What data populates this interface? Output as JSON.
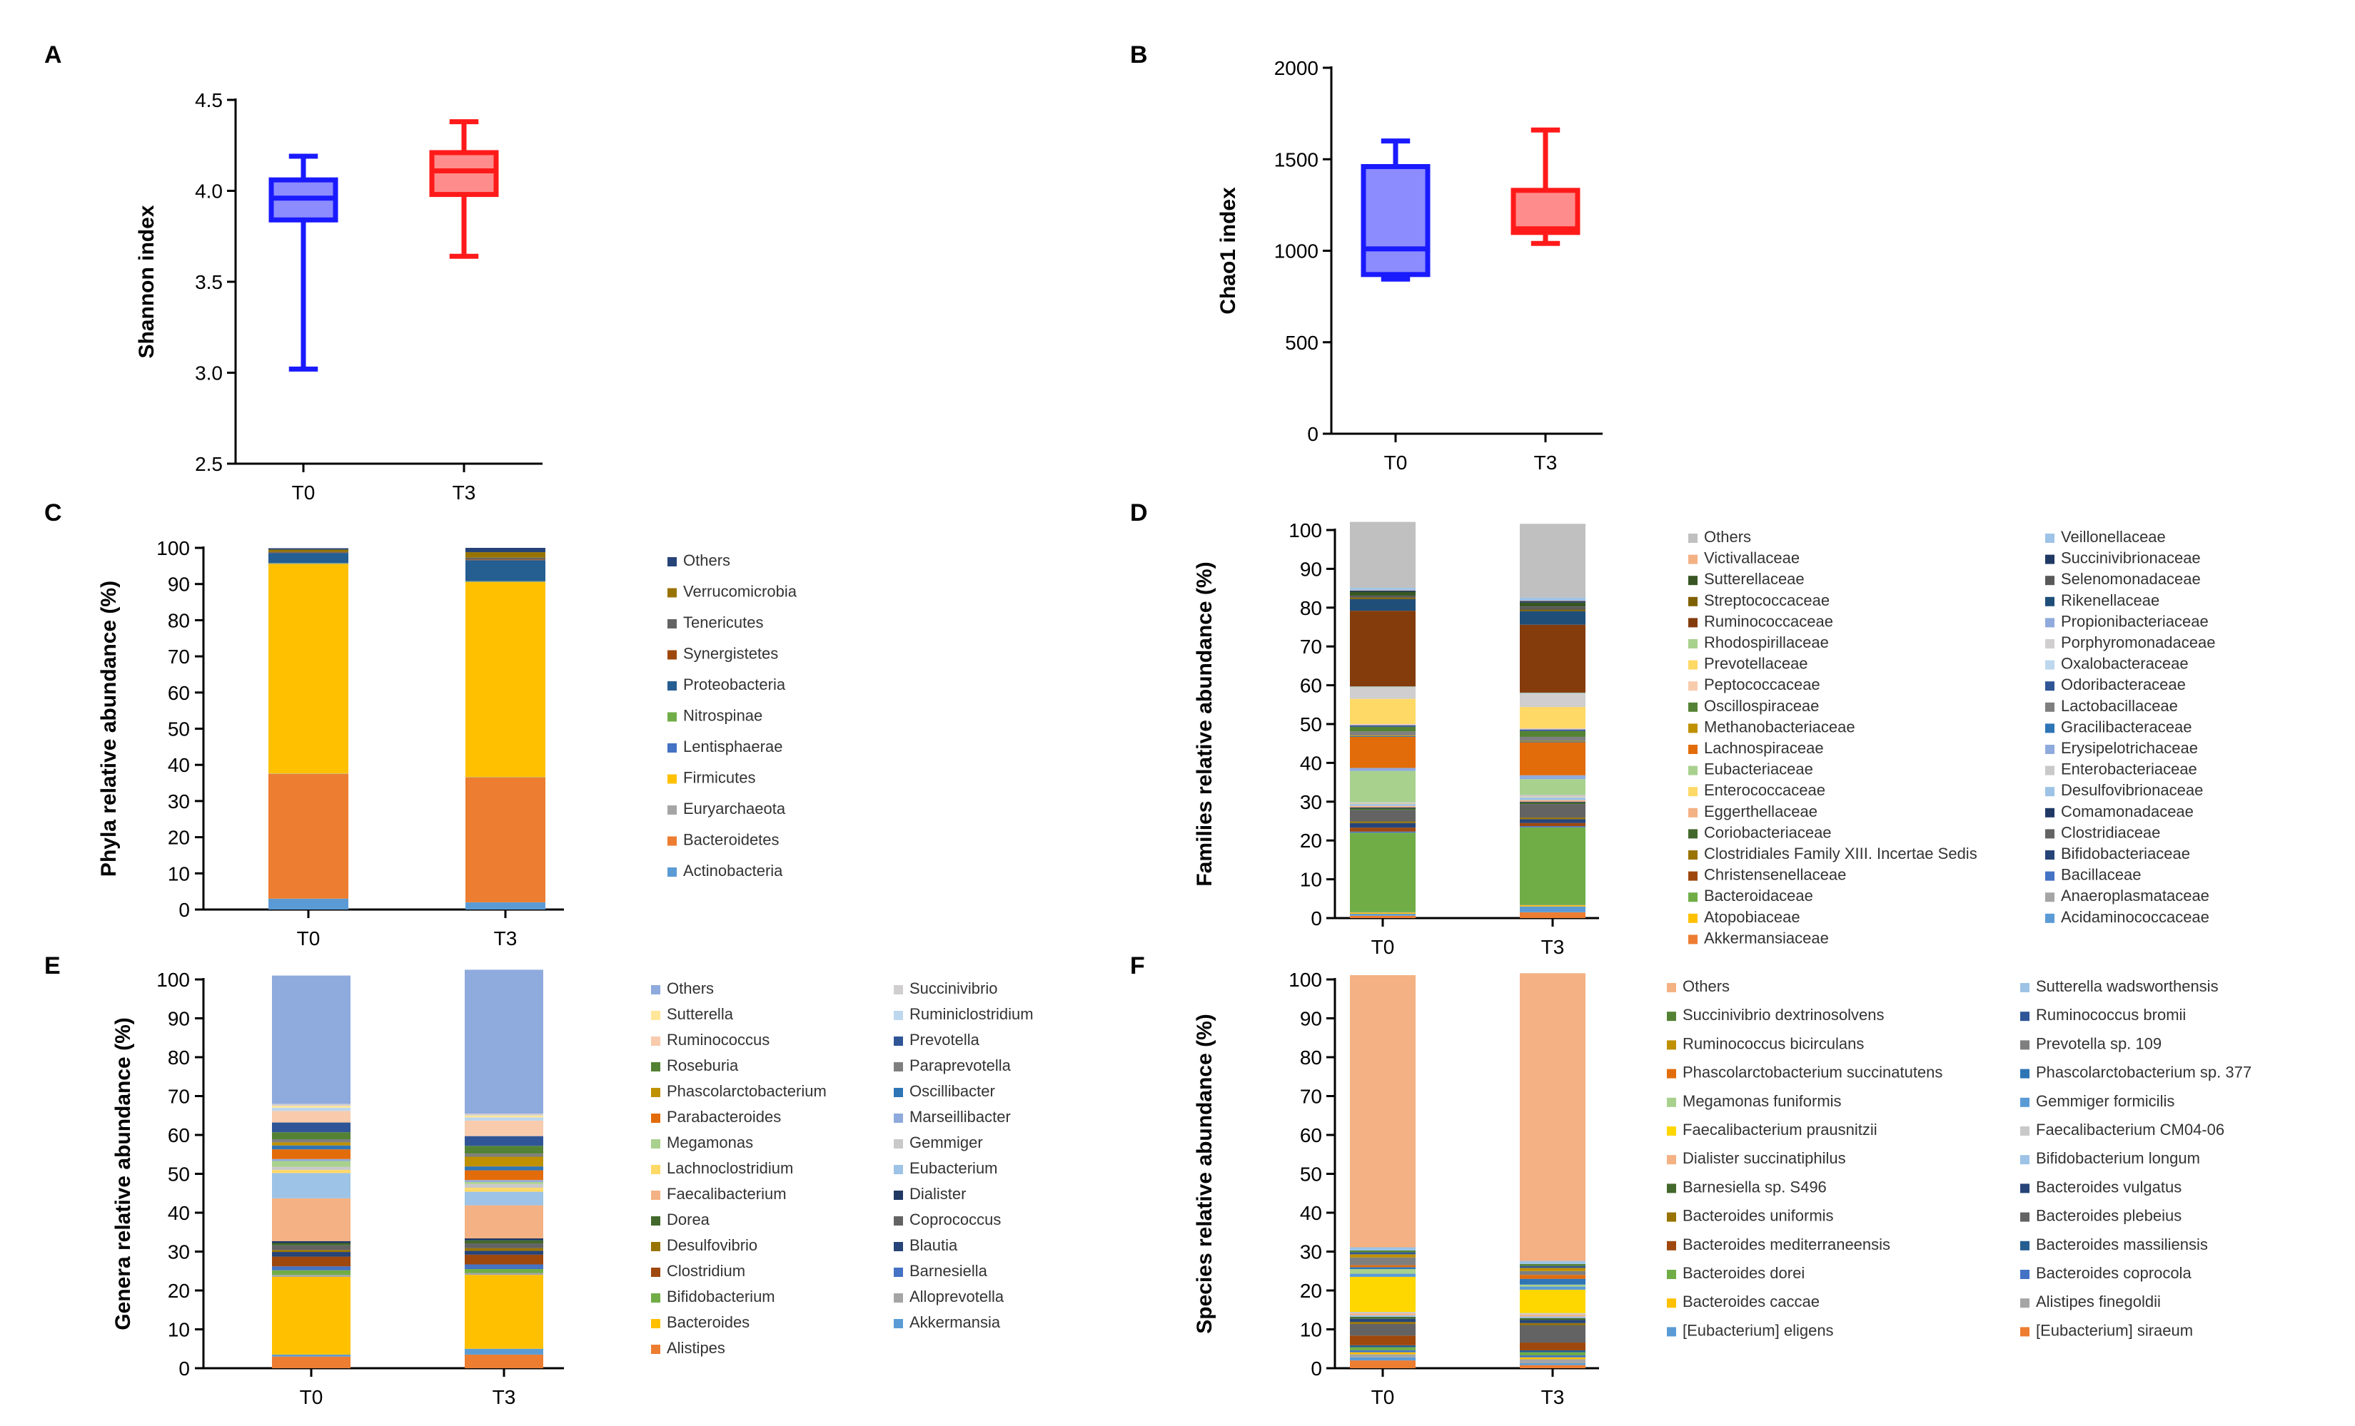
{
  "chart_data": [
    {
      "panel": "A",
      "type": "box",
      "ylabel": "Shannon index",
      "ylim": [
        2.5,
        4.5
      ],
      "yticks": [
        "2.5",
        "3.0",
        "3.5",
        "4.0",
        "4.5"
      ],
      "categories": [
        "T0",
        "T3"
      ],
      "boxes": [
        {
          "name": "T0",
          "min": 3.02,
          "q1": 3.84,
          "median": 3.96,
          "q3": 4.06,
          "max": 4.19,
          "color": "#1a1aff",
          "fill": "#8c8cff"
        },
        {
          "name": "T3",
          "min": 3.64,
          "q1": 3.98,
          "median": 4.11,
          "q3": 4.21,
          "max": 4.38,
          "color": "#ff1a1a",
          "fill": "#ff8c8c"
        }
      ]
    },
    {
      "panel": "B",
      "type": "box",
      "ylabel": "Chao1 index",
      "ylim": [
        0,
        2000
      ],
      "yticks": [
        "0",
        "500",
        "1000",
        "1500",
        "2000"
      ],
      "categories": [
        "T0",
        "T3"
      ],
      "boxes": [
        {
          "name": "T0",
          "min": 845,
          "q1": 870,
          "median": 1010,
          "q3": 1460,
          "max": 1600,
          "color": "#1a1aff",
          "fill": "#8c8cff"
        },
        {
          "name": "T3",
          "min": 1040,
          "q1": 1100,
          "median": 1120,
          "q3": 1330,
          "max": 1660,
          "color": "#ff1a1a",
          "fill": "#ff8c8c"
        }
      ]
    },
    {
      "panel": "C",
      "type": "bar",
      "stacked": true,
      "ylabel": "Phyla relative abundance (%)",
      "ylim": [
        0,
        100
      ],
      "yticks": [
        "0",
        "10",
        "20",
        "30",
        "40",
        "50",
        "60",
        "70",
        "80",
        "90",
        "100"
      ],
      "categories": [
        "T0",
        "T3"
      ],
      "legend_columns": 1,
      "series": [
        {
          "name": "Actinobacteria",
          "color": "#5b9bd5",
          "values": [
            3.0,
            2.0
          ]
        },
        {
          "name": "Bacteroidetes",
          "color": "#ed7d31",
          "values": [
            34.5,
            34.5
          ]
        },
        {
          "name": "Euryarchaeota",
          "color": "#a5a5a5",
          "values": [
            0.1,
            0.1
          ]
        },
        {
          "name": "Firmicutes",
          "color": "#ffc000",
          "values": [
            58.0,
            54.0
          ]
        },
        {
          "name": "Lentisphaerae",
          "color": "#4472c4",
          "values": [
            0.1,
            0.1
          ]
        },
        {
          "name": "Nitrospinae",
          "color": "#70ad47",
          "values": [
            0.1,
            0.1
          ]
        },
        {
          "name": "Proteobacteria",
          "color": "#255e91",
          "values": [
            2.8,
            5.8
          ]
        },
        {
          "name": "Synergistetes",
          "color": "#9e480e",
          "values": [
            0.1,
            0.2
          ]
        },
        {
          "name": "Tenericutes",
          "color": "#636363",
          "values": [
            0.2,
            0.5
          ]
        },
        {
          "name": "Verrucomicrobia",
          "color": "#997300",
          "values": [
            0.6,
            1.5
          ]
        },
        {
          "name": "Others",
          "color": "#264478",
          "values": [
            0.4,
            1.2
          ]
        }
      ]
    },
    {
      "panel": "D",
      "type": "bar",
      "stacked": true,
      "ylabel": "Families relative abundance (%)",
      "ylim": [
        0,
        100
      ],
      "yticks": [
        "0",
        "10",
        "20",
        "30",
        "40",
        "50",
        "60",
        "70",
        "80",
        "90",
        "100"
      ],
      "categories": [
        "T0",
        "T3"
      ],
      "legend_columns": 2,
      "series": [
        {
          "name": "Akkermansiaceae",
          "color": "#ed7d31",
          "values": [
            0.6,
            1.5
          ]
        },
        {
          "name": "Acidaminococcaceae",
          "color": "#5b9bd5",
          "values": [
            0.5,
            1.5
          ]
        },
        {
          "name": "Atopobiaceae",
          "color": "#ffc000",
          "values": [
            0.3,
            0.3
          ]
        },
        {
          "name": "Anaeroplasmataceae",
          "color": "#a5a5a5",
          "values": [
            0.1,
            0.1
          ]
        },
        {
          "name": "Bacteroidaceae",
          "color": "#70ad47",
          "values": [
            20.5,
            20.0
          ]
        },
        {
          "name": "Bacillaceae",
          "color": "#4472c4",
          "values": [
            0.3,
            0.3
          ]
        },
        {
          "name": "Christensenellaceae",
          "color": "#9e480e",
          "values": [
            1.0,
            0.8
          ]
        },
        {
          "name": "Bifidobacteriaceae",
          "color": "#264478",
          "values": [
            1.2,
            1.0
          ]
        },
        {
          "name": "Clostridiales Family XIII. Incertae Sedis",
          "color": "#997300",
          "values": [
            0.4,
            0.4
          ]
        },
        {
          "name": "Clostridiaceae",
          "color": "#636363",
          "values": [
            3.0,
            3.5
          ]
        },
        {
          "name": "Coriobacteriaceae",
          "color": "#43682b",
          "values": [
            0.4,
            0.4
          ]
        },
        {
          "name": "Comamonadaceae",
          "color": "#1f3864",
          "values": [
            0.2,
            0.2
          ]
        },
        {
          "name": "Eggerthellaceae",
          "color": "#f4b183",
          "values": [
            0.4,
            0.4
          ]
        },
        {
          "name": "Desulfovibrionaceae",
          "color": "#9dc3e6",
          "values": [
            0.5,
            0.7
          ]
        },
        {
          "name": "Enterococcaceae",
          "color": "#ffd966",
          "values": [
            0.1,
            0.1
          ]
        },
        {
          "name": "Enterobacteriaceae",
          "color": "#c9c9c9",
          "values": [
            0.4,
            0.6
          ]
        },
        {
          "name": "Eubacteriaceae",
          "color": "#a9d18e",
          "values": [
            8.0,
            4.0
          ]
        },
        {
          "name": "Erysipelotrichaceae",
          "color": "#8faadc",
          "values": [
            0.8,
            1.0
          ]
        },
        {
          "name": "Lachnospiraceae",
          "color": "#e36c0a",
          "values": [
            8.0,
            8.5
          ]
        },
        {
          "name": "Gracilibacteraceae",
          "color": "#2e75b6",
          "values": [
            0.2,
            0.2
          ]
        },
        {
          "name": "Methanobacteriaceae",
          "color": "#bf9000",
          "values": [
            0.2,
            0.2
          ]
        },
        {
          "name": "Lactobacillaceae",
          "color": "#7f7f7f",
          "values": [
            1.0,
            1.0
          ]
        },
        {
          "name": "Oscillospiraceae",
          "color": "#548235",
          "values": [
            1.2,
            1.5
          ]
        },
        {
          "name": "Odoribacteraceae",
          "color": "#2f5597",
          "values": [
            0.4,
            0.4
          ]
        },
        {
          "name": "Peptococcaceae",
          "color": "#f8cbad",
          "values": [
            0.2,
            0.2
          ]
        },
        {
          "name": "Oxalobacteraceae",
          "color": "#bdd7ee",
          "values": [
            0.1,
            0.1
          ]
        },
        {
          "name": "Prevotellaceae",
          "color": "#ffd966",
          "values": [
            6.5,
            5.5
          ]
        },
        {
          "name": "Porphyromonadaceae",
          "color": "#d0cece",
          "values": [
            3.0,
            3.5
          ]
        },
        {
          "name": "Rhodospirillaceae",
          "color": "#a9d18e",
          "values": [
            0.1,
            0.1
          ]
        },
        {
          "name": "Propionibacteriaceae",
          "color": "#8faadc",
          "values": [
            0.1,
            0.1
          ]
        },
        {
          "name": "Ruminococcaceae",
          "color": "#843c0c",
          "values": [
            19.5,
            17.5
          ]
        },
        {
          "name": "Rikenellaceae",
          "color": "#1f4e79",
          "values": [
            3.0,
            3.5
          ]
        },
        {
          "name": "Streptococcaceae",
          "color": "#7f6000",
          "values": [
            0.4,
            0.4
          ]
        },
        {
          "name": "Selenomonadaceae",
          "color": "#595959",
          "values": [
            0.5,
            0.8
          ]
        },
        {
          "name": "Sutterellaceae",
          "color": "#375623",
          "values": [
            1.0,
            1.0
          ]
        },
        {
          "name": "Succinivibrionaceae",
          "color": "#203864",
          "values": [
            0.3,
            0.4
          ]
        },
        {
          "name": "Victivallaceae",
          "color": "#f4b183",
          "values": [
            0.1,
            0.1
          ]
        },
        {
          "name": "Veillonellaceae",
          "color": "#9dc3e6",
          "values": [
            0.6,
            0.8
          ]
        },
        {
          "name": "Others",
          "color": "#c0c0c0",
          "values": [
            17.0,
            19.0
          ]
        }
      ]
    },
    {
      "panel": "E",
      "type": "bar",
      "stacked": true,
      "ylabel": "Genera relative abundance (%)",
      "ylim": [
        0,
        100
      ],
      "yticks": [
        "0",
        "10",
        "20",
        "30",
        "40",
        "50",
        "60",
        "70",
        "80",
        "90",
        "100"
      ],
      "categories": [
        "T0",
        "T3"
      ],
      "legend_columns": 2,
      "series": [
        {
          "name": "Alistipes",
          "color": "#ed7d31",
          "values": [
            3.0,
            3.5
          ]
        },
        {
          "name": "Akkermansia",
          "color": "#5b9bd5",
          "values": [
            0.5,
            1.5
          ]
        },
        {
          "name": "Bacteroides",
          "color": "#ffc000",
          "values": [
            20.0,
            19.0
          ]
        },
        {
          "name": "Alloprevotella",
          "color": "#a5a5a5",
          "values": [
            0.5,
            0.5
          ]
        },
        {
          "name": "Bifidobacterium",
          "color": "#70ad47",
          "values": [
            1.2,
            1.0
          ]
        },
        {
          "name": "Barnesiella",
          "color": "#4472c4",
          "values": [
            1.0,
            1.2
          ]
        },
        {
          "name": "Clostridium",
          "color": "#9e480e",
          "values": [
            2.5,
            2.5
          ]
        },
        {
          "name": "Blautia",
          "color": "#264478",
          "values": [
            1.2,
            1.0
          ]
        },
        {
          "name": "Desulfovibrio",
          "color": "#997300",
          "values": [
            0.5,
            0.7
          ]
        },
        {
          "name": "Coprococcus",
          "color": "#636363",
          "values": [
            1.2,
            1.2
          ]
        },
        {
          "name": "Dorea",
          "color": "#43682b",
          "values": [
            0.6,
            0.8
          ]
        },
        {
          "name": "Dialister",
          "color": "#1f3864",
          "values": [
            0.5,
            0.5
          ]
        },
        {
          "name": "Faecalibacterium",
          "color": "#f4b183",
          "values": [
            11.0,
            8.5
          ]
        },
        {
          "name": "Eubacterium",
          "color": "#9dc3e6",
          "values": [
            6.5,
            3.5
          ]
        },
        {
          "name": "Lachnoclostridium",
          "color": "#ffd966",
          "values": [
            0.8,
            1.0
          ]
        },
        {
          "name": "Gemmiger",
          "color": "#c9c9c9",
          "values": [
            0.8,
            1.0
          ]
        },
        {
          "name": "Megamonas",
          "color": "#a9d18e",
          "values": [
            1.5,
            0.5
          ]
        },
        {
          "name": "Marseillibacter",
          "color": "#8faadc",
          "values": [
            0.5,
            0.5
          ]
        },
        {
          "name": "Parabacteroides",
          "color": "#e36c0a",
          "values": [
            2.5,
            2.5
          ]
        },
        {
          "name": "Oscillibacter",
          "color": "#2e75b6",
          "values": [
            1.0,
            1.0
          ]
        },
        {
          "name": "Phascolarctobacterium",
          "color": "#bf9000",
          "values": [
            0.8,
            2.5
          ]
        },
        {
          "name": "Paraprevotella",
          "color": "#7f7f7f",
          "values": [
            0.8,
            0.8
          ]
        },
        {
          "name": "Roseburia",
          "color": "#548235",
          "values": [
            1.8,
            2.0
          ]
        },
        {
          "name": "Prevotella",
          "color": "#2f5597",
          "values": [
            2.5,
            2.5
          ]
        },
        {
          "name": "Ruminococcus",
          "color": "#f8cbad",
          "values": [
            3.0,
            4.0
          ]
        },
        {
          "name": "Ruminiclostridium",
          "color": "#bdd7ee",
          "values": [
            0.8,
            0.8
          ]
        },
        {
          "name": "Sutterella",
          "color": "#ffe699",
          "values": [
            0.5,
            0.5
          ]
        },
        {
          "name": "Succinivibrio",
          "color": "#d0cece",
          "values": [
            0.5,
            0.5
          ]
        },
        {
          "name": "Others",
          "color": "#8faadc",
          "values": [
            33.0,
            37.0
          ]
        }
      ]
    },
    {
      "panel": "F",
      "type": "bar",
      "stacked": true,
      "ylabel": "Species relative abundance (%)",
      "ylim": [
        0,
        100
      ],
      "yticks": [
        "0",
        "10",
        "20",
        "30",
        "40",
        "50",
        "60",
        "70",
        "80",
        "90",
        "100"
      ],
      "categories": [
        "T0",
        "T3"
      ],
      "legend_columns": 2,
      "series": [
        {
          "name": "[Eubacterium] siraeum",
          "color": "#ed7d31",
          "values": [
            2.0,
            0.8
          ]
        },
        {
          "name": "[Eubacterium] eligens",
          "color": "#5b9bd5",
          "values": [
            0.8,
            0.5
          ]
        },
        {
          "name": "Alistipes finegoldii",
          "color": "#a5a5a5",
          "values": [
            0.8,
            1.0
          ]
        },
        {
          "name": "Bacteroides caccae",
          "color": "#ffc000",
          "values": [
            0.5,
            0.5
          ]
        },
        {
          "name": "Bacteroides coprocola",
          "color": "#4472c4",
          "values": [
            0.5,
            0.5
          ]
        },
        {
          "name": "Bacteroides dorei",
          "color": "#70ad47",
          "values": [
            0.8,
            0.8
          ]
        },
        {
          "name": "Bacteroides massiliensis",
          "color": "#255e91",
          "values": [
            0.5,
            0.5
          ]
        },
        {
          "name": "Bacteroides mediterraneensis",
          "color": "#9e480e",
          "values": [
            2.5,
            2.0
          ]
        },
        {
          "name": "Bacteroides plebeius",
          "color": "#636363",
          "values": [
            3.0,
            4.5
          ]
        },
        {
          "name": "Bacteroides uniformis",
          "color": "#997300",
          "values": [
            0.5,
            0.5
          ]
        },
        {
          "name": "Bacteroides vulgatus",
          "color": "#264478",
          "values": [
            0.8,
            0.8
          ]
        },
        {
          "name": "Barnesiella sp. S496",
          "color": "#43682b",
          "values": [
            0.5,
            0.5
          ]
        },
        {
          "name": "Bifidobacterium longum",
          "color": "#9dc3e6",
          "values": [
            0.4,
            0.4
          ]
        },
        {
          "name": "Dialister succinatiphilus",
          "color": "#f4b183",
          "values": [
            0.5,
            0.5
          ]
        },
        {
          "name": "Faecalibacterium CM04-06",
          "color": "#c9c9c9",
          "values": [
            0.4,
            0.4
          ]
        },
        {
          "name": "Faecalibacterium prausnitzii",
          "color": "#ffd700",
          "values": [
            9.0,
            6.0
          ]
        },
        {
          "name": "Gemmiger formicilis",
          "color": "#5b9bd5",
          "values": [
            0.8,
            0.8
          ]
        },
        {
          "name": "Megamonas funiformis",
          "color": "#a9d18e",
          "values": [
            1.2,
            0.5
          ]
        },
        {
          "name": "Phascolarctobacterium sp. 377",
          "color": "#2e75b6",
          "values": [
            0.5,
            1.5
          ]
        },
        {
          "name": "Phascolarctobacterium succinatutens",
          "color": "#e36c0a",
          "values": [
            0.5,
            1.0
          ]
        },
        {
          "name": "Prevotella sp. 109",
          "color": "#7f7f7f",
          "values": [
            2.0,
            1.0
          ]
        },
        {
          "name": "Ruminococcus bicirculans",
          "color": "#bf9000",
          "values": [
            0.8,
            0.8
          ]
        },
        {
          "name": "Ruminococcus bromii",
          "color": "#2f5597",
          "values": [
            0.5,
            0.5
          ]
        },
        {
          "name": "Succinivibrio dextrinosolvens",
          "color": "#548235",
          "values": [
            0.5,
            0.5
          ]
        },
        {
          "name": "Sutterella wadsworthensis",
          "color": "#9dc3e6",
          "values": [
            0.8,
            0.8
          ]
        },
        {
          "name": "Others",
          "color": "#f4b183",
          "values": [
            70.0,
            74.0
          ]
        }
      ]
    }
  ]
}
